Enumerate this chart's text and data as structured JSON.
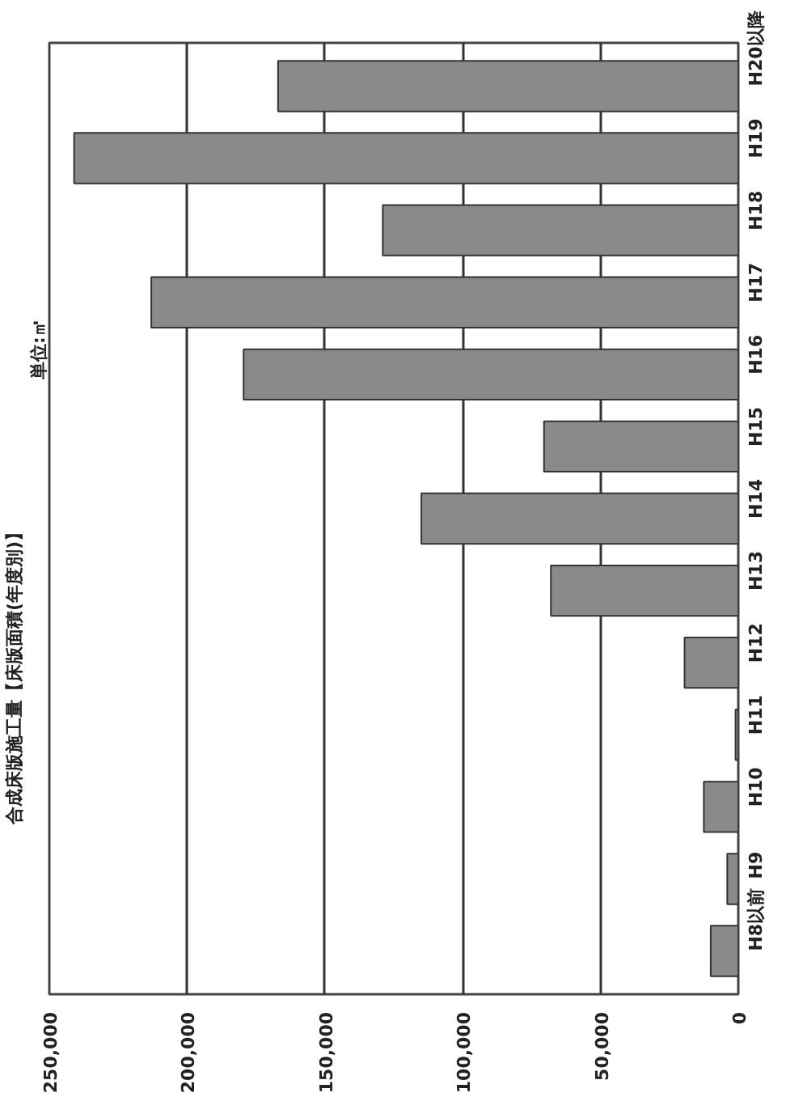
{
  "chart_data": {
    "type": "bar",
    "orientation": "horizontal",
    "title": "合成床版施工量【床版面積(年度別)】",
    "subtitle": "単位:㎡",
    "categories": [
      "H20以降",
      "H19",
      "H18",
      "H17",
      "H16",
      "H15",
      "H14",
      "H13",
      "H12",
      "H11",
      "H10",
      "H9",
      "H8以前"
    ],
    "values": [
      167000,
      241000,
      129000,
      213000,
      179500,
      70500,
      115000,
      68000,
      19500,
      1000,
      12500,
      4000,
      10000
    ],
    "color": "#8a8a8a",
    "xlim": [
      250000,
      0
    ],
    "xticks": [
      {
        "value": 250000,
        "label": "250,000"
      },
      {
        "value": 200000,
        "label": "200,000"
      },
      {
        "value": 150000,
        "label": "150,000"
      },
      {
        "value": 100000,
        "label": "100,000"
      },
      {
        "value": 50000,
        "label": "50,000"
      },
      0
    ],
    "grid": "x"
  }
}
